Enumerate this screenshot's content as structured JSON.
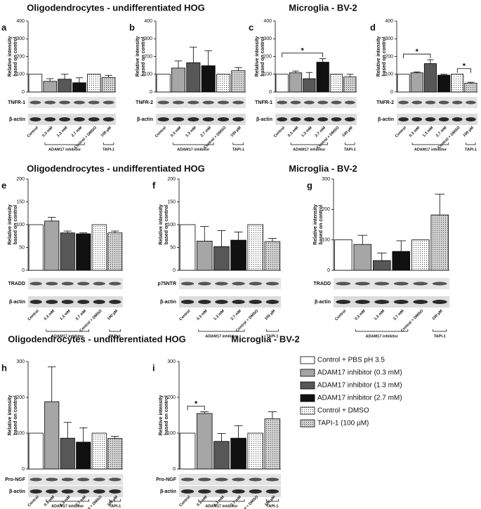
{
  "titles": [
    "Oligodendrocytes - undifferentiated HOG",
    "Microglia - BV-2",
    "Oligodendrocytes - undifferentiated HOG",
    "Microglia - BV-2",
    "Oligodendrocytes - undifferentiated HOG",
    "Microglia - BV-2"
  ],
  "legend": [
    {
      "name": "Control + PBS pH 3.5",
      "color": "#ffffff",
      "dotted": false
    },
    {
      "name": "ADAM17 inhibitor (0.3 mM)",
      "color": "#a6a6a6",
      "dotted": false
    },
    {
      "name": "ADAM17 inhibitor (1.3 mM)",
      "color": "#575757",
      "dotted": false
    },
    {
      "name": "ADAM17 inhibitor (2.7 mM)",
      "color": "#111111",
      "dotted": false
    },
    {
      "name": "Control + DMSO",
      "color": "#ffffff",
      "dotted": true
    },
    {
      "name": "TAPI-1 (100 µM)",
      "color": "#d4d4d4",
      "dotted": true
    }
  ],
  "chart_data": [
    {
      "type": "bar",
      "panel": "a",
      "ylabel": [
        "Relative intensity",
        "based on control"
      ],
      "categories": [
        "Control",
        "0.3 mM",
        "1.3 mM",
        "2.7 mM",
        "Control + DMSO",
        "100 µM"
      ],
      "values": [
        100,
        60,
        72,
        52,
        100,
        82
      ],
      "errors": [
        null,
        15,
        28,
        28,
        null,
        12
      ],
      "ylim": [
        0,
        400
      ],
      "yticks": [
        0,
        100,
        200,
        300,
        400
      ],
      "blots": [
        "TNFR-1",
        "β-actin"
      ],
      "groups": [
        "ADAM17 inhibitor",
        "TAPI-1"
      ],
      "brackets": []
    },
    {
      "type": "bar",
      "panel": "b",
      "ylabel": [
        "Relative intensity",
        "based on control"
      ],
      "categories": [
        "Control",
        "0.3 mM",
        "1.3 mM",
        "2.7 mM",
        "Control + DMSO",
        "100 µM"
      ],
      "values": [
        100,
        135,
        165,
        148,
        100,
        120
      ],
      "errors": [
        null,
        40,
        88,
        85,
        null,
        18
      ],
      "ylim": [
        0,
        400
      ],
      "yticks": [
        0,
        100,
        200,
        300,
        400
      ],
      "blots": [
        "TNFR-2",
        "β-actin"
      ],
      "groups": [
        "ADAM17 inhibitor",
        "TAPI-1"
      ],
      "brackets": []
    },
    {
      "type": "bar",
      "panel": "c",
      "ylabel": [
        "Relative intensity",
        "based on control"
      ],
      "categories": [
        "Control",
        "0.3 mM",
        "1.3 mM",
        "2.7 mM",
        "Control + DMSO",
        "100 µM"
      ],
      "values": [
        100,
        108,
        75,
        168,
        100,
        85
      ],
      "errors": [
        null,
        10,
        35,
        20,
        null,
        15
      ],
      "ylim": [
        0,
        400
      ],
      "yticks": [
        0,
        100,
        200,
        300,
        400
      ],
      "blots": [
        "TNFR-1",
        "β-actin"
      ],
      "groups": [
        "ADAM17 inhibitor",
        "TAPI-1"
      ],
      "brackets": [
        {
          "between": [
            "Control",
            "2.7 mM"
          ],
          "label": "*"
        }
      ]
    },
    {
      "type": "bar",
      "panel": "d",
      "ylabel": [
        "Relative intensity",
        "based on control"
      ],
      "categories": [
        "Control",
        "0.3 mM",
        "1.3 mM",
        "2.7 mM",
        "Control + DMSO",
        "100 µM"
      ],
      "values": [
        100,
        108,
        160,
        95,
        100,
        50
      ],
      "errors": [
        null,
        5,
        22,
        5,
        null,
        5
      ],
      "ylim": [
        0,
        400
      ],
      "yticks": [
        0,
        100,
        200,
        300,
        400
      ],
      "blots": [
        "TNFR-2",
        "β-actin"
      ],
      "groups": [
        "ADAM17 inhibitor",
        "TAPI-1"
      ],
      "brackets": [
        {
          "between": [
            "Control",
            "1.3 mM"
          ],
          "label": "*"
        },
        {
          "between": [
            "Control + DMSO",
            "100 µM"
          ],
          "label": "*"
        }
      ]
    },
    {
      "type": "bar",
      "panel": "e",
      "ylabel": [
        "Relative intensity",
        "based on control"
      ],
      "categories": [
        "Control",
        "0.3 mM",
        "1.3 mM",
        "2.7 mM",
        "Control + DMSO",
        "100 µM"
      ],
      "values": [
        100,
        108,
        82,
        80,
        100,
        82
      ],
      "errors": [
        null,
        8,
        4,
        2,
        null,
        4
      ],
      "ylim": [
        0,
        200
      ],
      "yticks": [
        0,
        50,
        100,
        150,
        200
      ],
      "blots": [
        "TRADD",
        "β-actin"
      ],
      "groups": [
        "ADAM17 inhibitor",
        "TAPI-1"
      ],
      "brackets": []
    },
    {
      "type": "bar",
      "panel": "f",
      "ylabel": [
        "Relative intensity",
        "based on control"
      ],
      "categories": [
        "Control",
        "0.3 mM",
        "1.3 mM",
        "2.7 mM",
        "Control + DMSO",
        "100 µM"
      ],
      "values": [
        100,
        64,
        52,
        66,
        100,
        63
      ],
      "errors": [
        null,
        32,
        35,
        18,
        null,
        7
      ],
      "ylim": [
        0,
        200
      ],
      "yticks": [
        0,
        50,
        100,
        150,
        200
      ],
      "blots": [
        "p75NTR",
        "β-actin"
      ],
      "groups": [
        "ADAM17 inhibitor",
        "TAPI-1"
      ],
      "brackets": []
    },
    {
      "type": "bar",
      "panel": "g",
      "ylabel": [
        "Relative intensity",
        "based on control"
      ],
      "categories": [
        "Control",
        "0.3 mM",
        "1.3 mM",
        "2.7 mM",
        "Control + DMSO",
        "100 µM"
      ],
      "values": [
        100,
        85,
        32,
        62,
        100,
        182
      ],
      "errors": [
        null,
        30,
        25,
        35,
        null,
        68
      ],
      "ylim": [
        0,
        300
      ],
      "yticks": [
        0,
        100,
        200,
        300
      ],
      "blots": [
        "TRADD",
        "β-actin"
      ],
      "groups": [
        "ADAM17 inhibitor",
        "TAPI-1"
      ],
      "brackets": []
    },
    {
      "type": "bar",
      "panel": "h",
      "ylabel": [
        "Relative intensity",
        "based on control"
      ],
      "categories": [
        "Control",
        "0.3 mM",
        "1.3 mM",
        "2.7 mM",
        "Control + DMSO",
        "100 µM"
      ],
      "values": [
        100,
        188,
        86,
        75,
        100,
        85
      ],
      "errors": [
        null,
        97,
        44,
        40,
        null,
        6
      ],
      "ylim": [
        0,
        300
      ],
      "yticks": [
        0,
        100,
        200,
        300
      ],
      "blots": [
        "Pro-NGF",
        "β-actin"
      ],
      "groups": [
        "ADAM17 inhibitor",
        "TAPI-1"
      ],
      "brackets": []
    },
    {
      "type": "bar",
      "panel": "i",
      "ylabel": [
        "Relative intensity",
        "based on control"
      ],
      "categories": [
        "Control",
        "0.3 mM",
        "1.3 mM",
        "2.7 mM",
        "Control + DMSO",
        "100 µM"
      ],
      "values": [
        100,
        155,
        77,
        86,
        100,
        140
      ],
      "errors": [
        null,
        5,
        22,
        35,
        null,
        20
      ],
      "ylim": [
        0,
        300
      ],
      "yticks": [
        0,
        100,
        200,
        300
      ],
      "blots": [
        "Pro-NGF",
        "β-actin"
      ],
      "groups": [
        "ADAM17 inhibitor",
        "TAPI-1"
      ],
      "brackets": [
        {
          "between": [
            "Control",
            "0.3 mM"
          ],
          "label": "*"
        }
      ]
    }
  ]
}
